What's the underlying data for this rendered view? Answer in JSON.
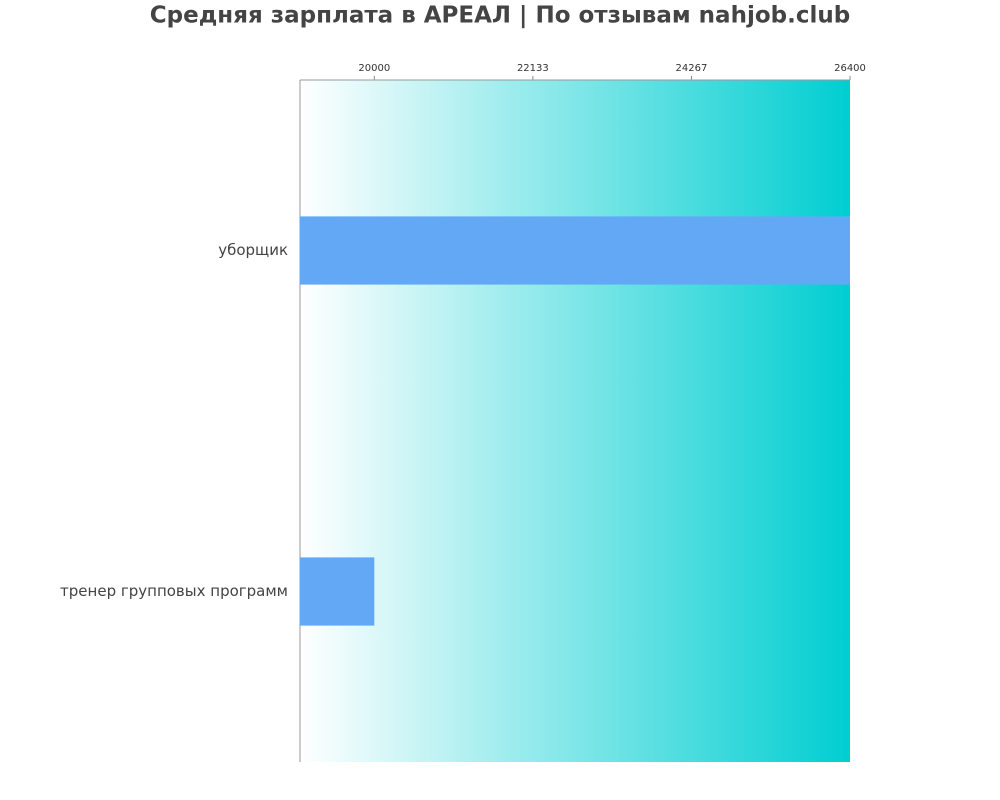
{
  "chart_data": {
    "type": "barh",
    "title": "Средняя зарплата в АРЕАЛ | По отзывам nahjob.club",
    "categories": [
      "уборщик",
      "тренер групповых программ"
    ],
    "values": [
      26400,
      20000
    ],
    "color": "#63a8f4",
    "xlim": [
      19000,
      26400
    ],
    "xticks": [
      20000,
      22133,
      24267,
      26400
    ],
    "background_gradient": [
      "#ffffff",
      "#00ced1"
    ]
  }
}
